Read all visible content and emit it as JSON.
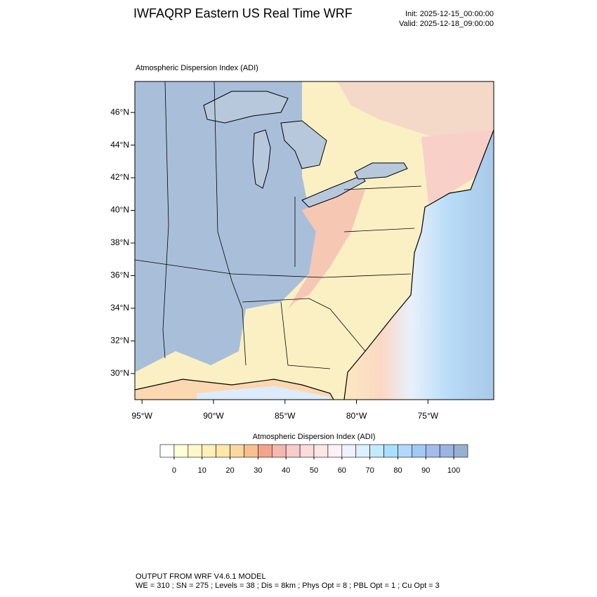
{
  "header": {
    "title": "IWFAQRP Eastern US Real Time WRF",
    "init": "Init: 2025-12-15_00:00:00",
    "valid": "Valid: 2025-12-18_09:00:00"
  },
  "map": {
    "title": "Atmospheric Dispersion Index   (ADI)",
    "xlim": [
      -95.5,
      -70.4
    ],
    "ylim": [
      28.4,
      47.9
    ],
    "xticks": [
      {
        "value": -95,
        "label": "95°W"
      },
      {
        "value": -90,
        "label": "90°W"
      },
      {
        "value": -85,
        "label": "85°W"
      },
      {
        "value": -80,
        "label": "80°W"
      },
      {
        "value": -75,
        "label": "75°W"
      }
    ],
    "yticks": [
      {
        "value": 30,
        "label": "30°N"
      },
      {
        "value": 32,
        "label": "32°N"
      },
      {
        "value": 34,
        "label": "34°N"
      },
      {
        "value": 36,
        "label": "36°N"
      },
      {
        "value": 38,
        "label": "38°N"
      },
      {
        "value": 40,
        "label": "40°N"
      },
      {
        "value": 42,
        "label": "42°N"
      },
      {
        "value": 44,
        "label": "44°N"
      },
      {
        "value": 46,
        "label": "46°N"
      }
    ]
  },
  "colorbar": {
    "title": "Atmospheric Dispersion Index  (ADI)",
    "lim": [
      -5,
      105
    ],
    "ticks": [
      0,
      10,
      20,
      30,
      40,
      50,
      60,
      70,
      80,
      90,
      100
    ],
    "colors": [
      "#ffffff",
      "#ffffd8",
      "#fff8c8",
      "#fff0b8",
      "#ffe8a8",
      "#fcd8a0",
      "#f8c090",
      "#f4a48c",
      "#f4b8b0",
      "#f8cccc",
      "#fadada",
      "#fce6e6",
      "#fff2f4",
      "#eef2ff",
      "#dcf0ff",
      "#c4eaff",
      "#a8e0ff",
      "#b4d8fc",
      "#a4c8f4",
      "#a4bcec",
      "#9cb4e0",
      "#98b0d0"
    ]
  },
  "footer": {
    "line1": "OUTPUT FROM WRF V4.6.1 MODEL",
    "line2": "WE = 310 ; SN = 275 ; Levels = 38 ; Dis = 8km ; Phys Opt = 8 ; PBL Opt = 1 ; Cu Opt = 3"
  }
}
